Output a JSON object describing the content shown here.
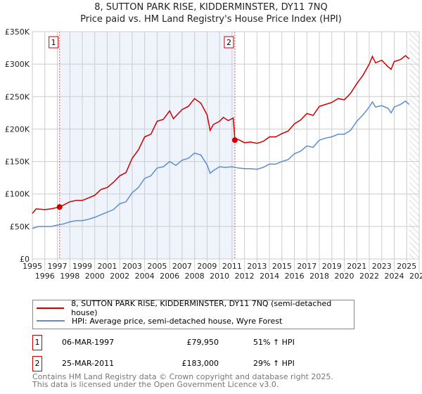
{
  "chart_data": {
    "type": "line",
    "title": "8, SUTTON PARK RISE, KIDDERMINSTER, DY11 7NQ",
    "subtitle": "Price paid vs. HM Land Registry's House Price Index (HPI)",
    "xlim": [
      1995,
      2026
    ],
    "ylim": [
      0,
      350000
    ],
    "yticks": [
      0,
      50000,
      100000,
      150000,
      200000,
      250000,
      300000,
      350000
    ],
    "ytick_labels": [
      "£0",
      "£50K",
      "£100K",
      "£150K",
      "£200K",
      "£250K",
      "£300K",
      "£350K"
    ],
    "xticks": [
      "1995",
      "1996",
      "1997",
      "1998",
      "1999",
      "2000",
      "2001",
      "2002",
      "2003",
      "2004",
      "2005",
      "2006",
      "2007",
      "2008",
      "2009",
      "2010",
      "2011",
      "2012",
      "2013",
      "2014",
      "2015",
      "2016",
      "2017",
      "2018",
      "2019",
      "2020",
      "2021",
      "2022",
      "2023",
      "2024",
      "2025",
      "2026"
    ],
    "grid": true,
    "shaded_range": [
      1997.18,
      2011.23
    ],
    "future_hatch_from": 2025.2,
    "series": [
      {
        "name": "8, SUTTON PARK RISE, KIDDERMINSTER, DY11 7NQ (semi-detached house)",
        "color": "#cc0000",
        "x": [
          1995,
          1995.3,
          1996,
          1996.5,
          1997.18,
          1997.5,
          1998,
          1998.5,
          1999,
          1999.5,
          2000,
          2000.5,
          2001,
          2001.5,
          2002,
          2002.5,
          2003,
          2003.5,
          2004,
          2004.5,
          2005,
          2005.5,
          2006,
          2006.3,
          2007,
          2007.5,
          2008,
          2008.5,
          2009,
          2009.25,
          2009.5,
          2010,
          2010.3,
          2010.7,
          2011.1,
          2011.23,
          2011.5,
          2012,
          2012.5,
          2013,
          2013.5,
          2014,
          2014.5,
          2015,
          2015.5,
          2016,
          2016.5,
          2017,
          2017.5,
          2018,
          2018.5,
          2019,
          2019.5,
          2020,
          2020.5,
          2021,
          2021.5,
          2022,
          2022.25,
          2022.5,
          2023,
          2023.5,
          2023.75,
          2024,
          2024.5,
          2024.9,
          2025.2
        ],
        "y": [
          70000,
          77000,
          76000,
          77000,
          79950,
          83000,
          88000,
          90000,
          90000,
          94000,
          98000,
          107000,
          110000,
          118000,
          128000,
          133000,
          155000,
          168000,
          188000,
          192000,
          212000,
          215000,
          228000,
          216000,
          230000,
          235000,
          247000,
          240000,
          222000,
          198000,
          207000,
          212000,
          218000,
          213000,
          217000,
          183000,
          184000,
          179000,
          180000,
          178000,
          181000,
          188000,
          188000,
          193000,
          197000,
          208000,
          214000,
          224000,
          221000,
          235000,
          238000,
          241000,
          247000,
          245000,
          255000,
          270000,
          283000,
          300000,
          312000,
          302000,
          306000,
          296000,
          292000,
          304000,
          307000,
          313000,
          308000
        ]
      },
      {
        "name": "HPI: Average price, semi-detached house, Wyre Forest",
        "color": "#5b8fd0",
        "x": [
          1995,
          1995.5,
          1996,
          1996.5,
          1997,
          1997.5,
          1998,
          1998.5,
          1999,
          1999.5,
          2000,
          2000.5,
          2001,
          2001.5,
          2002,
          2002.5,
          2003,
          2003.5,
          2004,
          2004.5,
          2005,
          2005.5,
          2006,
          2006.5,
          2007,
          2007.5,
          2008,
          2008.5,
          2009,
          2009.25,
          2009.5,
          2010,
          2010.5,
          2011,
          2011.5,
          2012,
          2012.5,
          2013,
          2013.5,
          2014,
          2014.5,
          2015,
          2015.5,
          2016,
          2016.5,
          2017,
          2017.5,
          2018,
          2018.5,
          2019,
          2019.5,
          2020,
          2020.5,
          2021,
          2021.5,
          2022,
          2022.25,
          2022.5,
          2023,
          2023.5,
          2023.75,
          2024,
          2024.5,
          2024.9,
          2025.2
        ],
        "y": [
          47000,
          50000,
          50000,
          50000,
          52000,
          54000,
          57000,
          59000,
          59000,
          61000,
          64000,
          68000,
          72000,
          76000,
          85000,
          88000,
          102000,
          110000,
          124000,
          128000,
          140000,
          142000,
          150000,
          144000,
          152000,
          155000,
          163000,
          160000,
          145000,
          132000,
          136000,
          142000,
          141000,
          142000,
          140000,
          139000,
          139000,
          138000,
          141000,
          146000,
          146000,
          150000,
          153000,
          162000,
          166000,
          174000,
          172000,
          183000,
          186000,
          188000,
          192000,
          192000,
          198000,
          212000,
          222000,
          234000,
          242000,
          234000,
          236000,
          232000,
          225000,
          234000,
          238000,
          243000,
          238000
        ]
      }
    ],
    "markers": [
      {
        "label": "1",
        "x": 1997.18,
        "y": 79950
      },
      {
        "label": "2",
        "x": 2011.23,
        "y": 183000
      }
    ]
  },
  "header": {
    "title": "8, SUTTON PARK RISE, KIDDERMINSTER, DY11 7NQ",
    "subtitle": "Price paid vs. HM Land Registry's House Price Index (HPI)"
  },
  "legend": {
    "items": [
      {
        "label": "8, SUTTON PARK RISE, KIDDERMINSTER, DY11 7NQ (semi-detached house)"
      },
      {
        "label": "HPI: Average price, semi-detached house, Wyre Forest"
      }
    ]
  },
  "transactions": [
    {
      "num": "1",
      "date": "06-MAR-1997",
      "price": "£79,950",
      "hpi": "51% ↑ HPI"
    },
    {
      "num": "2",
      "date": "25-MAR-2011",
      "price": "£183,000",
      "hpi": "29% ↑ HPI"
    }
  ],
  "footer": {
    "line1": "Contains HM Land Registry data © Crown copyright and database right 2025.",
    "line2": "This data is licensed under the Open Government Licence v3.0."
  }
}
